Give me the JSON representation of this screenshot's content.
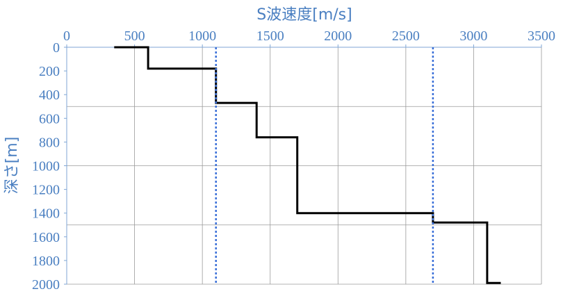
{
  "chart_data": {
    "type": "line",
    "title": "",
    "xlabel": "S波速度[m/s]",
    "ylabel": "深さ[m]",
    "x_axis_position": "top",
    "y_axis_inverted": true,
    "xlim": [
      0,
      3500
    ],
    "ylim": [
      0,
      2000
    ],
    "x_ticks": [
      0,
      500,
      1000,
      1500,
      2000,
      2500,
      3000,
      3500
    ],
    "y_ticks": [
      0,
      200,
      400,
      600,
      800,
      1000,
      1200,
      1400,
      1600,
      1800,
      2000
    ],
    "grid": {
      "vertical_at_x": [
        500,
        1000,
        1500,
        2000,
        2500,
        3000,
        3500
      ],
      "horizontal_at_y": [
        500,
        1000,
        1500,
        2000
      ]
    },
    "series": [
      {
        "style": "solid",
        "color": "#000000",
        "points": [
          [
            350,
            0
          ],
          [
            600,
            0
          ],
          [
            600,
            180
          ],
          [
            1100,
            180
          ],
          [
            1100,
            470
          ],
          [
            1400,
            470
          ],
          [
            1400,
            760
          ],
          [
            1700,
            760
          ],
          [
            1700,
            1400
          ],
          [
            2700,
            1400
          ],
          [
            2700,
            1480
          ],
          [
            3100,
            1480
          ],
          [
            3100,
            1990
          ],
          [
            3200,
            1990
          ]
        ]
      },
      {
        "style": "dotted",
        "color": "#3a6fd8",
        "points": [
          [
            1100,
            0
          ],
          [
            1100,
            2000
          ]
        ]
      },
      {
        "style": "dotted",
        "color": "#3a6fd8",
        "points": [
          [
            2700,
            0
          ],
          [
            2700,
            2000
          ]
        ]
      }
    ],
    "colors": {
      "text": "#4a7fc1",
      "axis": "#7fa6d6",
      "grid": "#9a9a9a",
      "step": "#000000",
      "dotted": "#3a6fd8"
    }
  }
}
